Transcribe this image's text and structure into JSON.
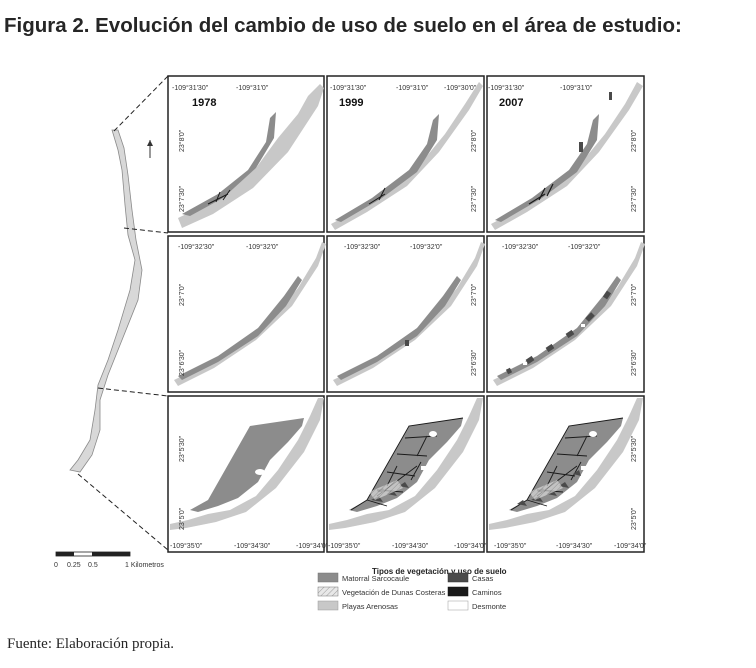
{
  "title": "Figura 2. Evolución del cambio de uso de suelo en el área de estudio:",
  "source": "Fuente: Elaboración propia.",
  "years": [
    "1978",
    "1999",
    "2007"
  ],
  "rows": [
    {
      "x_ticks": [
        [
          "-109°31'30\"",
          "-109°31'0\""
        ],
        [
          "-109°31'30\"",
          "-109°31'0\"",
          "-109°30'0\""
        ],
        [
          "-109°31'30\"",
          "-109°31'0\""
        ]
      ],
      "y_ticks": [
        "23°8'0\"",
        "23°7'30\""
      ]
    },
    {
      "x_ticks": [
        [
          "-109°32'30\"",
          "-109°32'0\""
        ],
        [
          "-109°32'30\"",
          "-109°32'0\""
        ],
        [
          "-109°32'30\"",
          "-109°32'0\""
        ]
      ],
      "y_ticks": [
        "23°7'0\"",
        "23°6'30\""
      ]
    },
    {
      "x_ticks": [
        [
          "-109°35'0\"",
          "-109°34'30\"",
          "-109°34'0\""
        ],
        [
          "-109°35'0\"",
          "-109°34'30\"",
          "-109°34'0\""
        ],
        [
          "-109°35'0\"",
          "-109°34'30\"",
          "-109°34'0\""
        ]
      ],
      "y_ticks": [
        "23°5'30\"",
        "23°5'0\""
      ]
    }
  ],
  "scale_bar": {
    "labels": [
      "0",
      "0.25",
      "0.5",
      "1 Kilometros"
    ]
  },
  "legend": {
    "title": "Tipos de vegetación y uso de suelo",
    "items": [
      {
        "label": "Matorral Sarcocaule",
        "color": "#8c8c8c"
      },
      {
        "label": "Casas",
        "color": "#4a4a4a"
      },
      {
        "label": "Vegetación de Dunas Costeras",
        "color": "hatch"
      },
      {
        "label": "Caminos",
        "color": "#1a1a1a"
      },
      {
        "label": "Playas Arenosas",
        "color": "#c8c8c8"
      },
      {
        "label": "Desmonte",
        "color": "#ffffff"
      }
    ]
  }
}
